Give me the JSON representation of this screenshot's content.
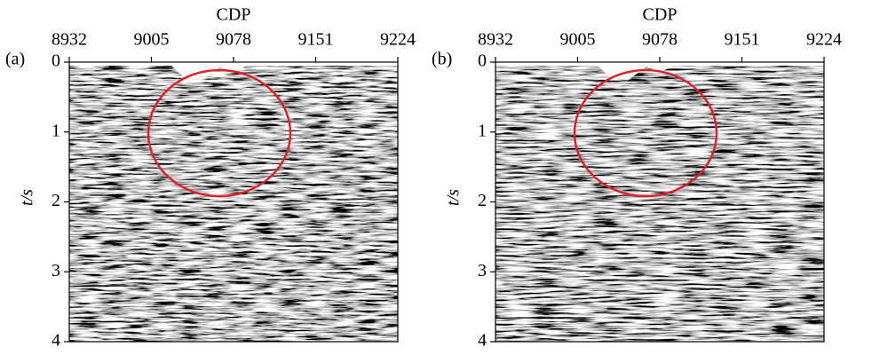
{
  "chart_data": [
    {
      "type": "seismic",
      "panel_label": "(a)",
      "xlabel": "CDP",
      "ylabel": "t/s",
      "xlim": [
        8932,
        9224
      ],
      "xticks": [
        8932,
        9005,
        9078,
        9151,
        9224
      ],
      "ylim": [
        0,
        4
      ],
      "yticks": [
        0,
        1,
        2,
        3,
        4
      ],
      "y_inverted": true
    },
    {
      "type": "seismic",
      "panel_label": "(b)",
      "xlabel": "CDP",
      "ylabel": "t/s",
      "xlim": [
        8932,
        9224
      ],
      "xticks": [
        8932,
        9005,
        9078,
        9151,
        9224
      ],
      "ylim": [
        0,
        4
      ],
      "yticks": [
        0,
        1,
        2,
        3,
        4
      ],
      "y_inverted": true
    }
  ]
}
